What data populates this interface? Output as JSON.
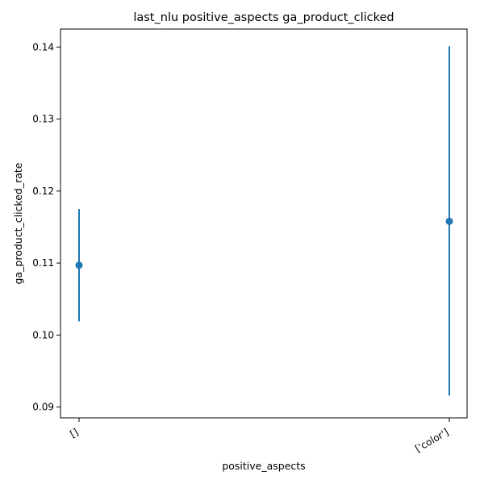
{
  "chart_data": {
    "type": "scatter",
    "title": "last_nlu positive_aspects ga_product_clicked",
    "xlabel": "positive_aspects",
    "ylabel": "ga_product_clicked_rate",
    "categories": [
      "[]",
      "['color']"
    ],
    "series": [
      {
        "values": [
          0.1097,
          0.1158
        ],
        "error_low": [
          0.1019,
          0.0916
        ],
        "error_high": [
          0.1175,
          0.1401
        ]
      }
    ],
    "ylim": [
      0.0885,
      0.1425
    ],
    "yticks": [
      0.09,
      0.1,
      0.11,
      0.12,
      0.13,
      0.14
    ],
    "ytick_labels": [
      "0.09",
      "0.10",
      "0.11",
      "0.12",
      "0.13",
      "0.14"
    ],
    "grid": false,
    "colors": {
      "series": "#1f77b4",
      "axis": "#000000"
    }
  }
}
